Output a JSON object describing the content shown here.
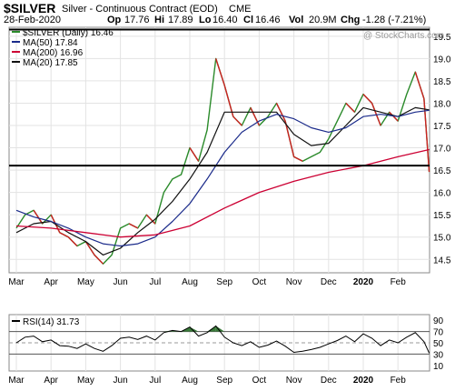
{
  "header": {
    "symbol": "$SILVER",
    "description": "Silver - Continuous Contract (EOD)",
    "exchange": "CME",
    "date": "28-Feb-2020",
    "open_label": "Op",
    "open": "17.76",
    "high_label": "Hi",
    "high": "17.89",
    "low_label": "Lo",
    "low": "16.40",
    "close_label": "Cl",
    "close": "16.46",
    "volume_label": "Vol",
    "volume": "20.9M",
    "change_label": "Chg",
    "change": "-1.28 (-7.21%)",
    "watermark": "@ StockCharts.com"
  },
  "colors": {
    "price_up": "#2a8a2a",
    "price_down": "#cc2222",
    "ma50": "#1a2a8a",
    "ma200": "#cc0033",
    "ma20": "#111111",
    "rsi_fill": "#3a7a3a",
    "support_line": "#000000"
  },
  "chart_data": [
    {
      "type": "line",
      "name": "price",
      "x_months": [
        "Mar",
        "Apr",
        "May",
        "Jun",
        "Jul",
        "Aug",
        "Sep",
        "Oct",
        "Nov",
        "Dec",
        "2020",
        "Feb"
      ],
      "ylim": [
        14.2,
        19.7
      ],
      "yticks": [
        "14.5",
        "15.0",
        "15.5",
        "16.0",
        "16.5",
        "17.0",
        "17.5",
        "18.0",
        "18.5",
        "19.0",
        "19.5"
      ],
      "horizontal_lines": [
        16.6,
        19.65
      ],
      "grid": true,
      "legend": [
        {
          "text": "$SILVER (Daily) 16.46"
        },
        {
          "text": "MA(50) 17.84"
        },
        {
          "text": "MA(200) 16.96"
        },
        {
          "text": "MA(20) 17.85"
        }
      ],
      "series": [
        {
          "id": "close",
          "x": [
            0,
            0.25,
            0.5,
            0.75,
            1,
            1.25,
            1.5,
            1.75,
            2,
            2.25,
            2.5,
            2.75,
            3,
            3.25,
            3.5,
            3.75,
            4,
            4.25,
            4.5,
            4.75,
            5,
            5.25,
            5.5,
            5.75,
            6,
            6.25,
            6.5,
            6.75,
            7,
            7.25,
            7.5,
            7.75,
            8,
            8.25,
            8.5,
            8.75,
            9,
            9.25,
            9.5,
            9.75,
            10,
            10.25,
            10.5,
            10.75,
            11,
            11.25,
            11.5,
            11.75,
            11.9
          ],
          "values": [
            15.2,
            15.5,
            15.6,
            15.3,
            15.5,
            15.1,
            15.0,
            14.8,
            14.9,
            14.6,
            14.4,
            14.6,
            15.2,
            15.3,
            15.2,
            15.5,
            15.3,
            16.0,
            16.3,
            16.4,
            17.0,
            16.7,
            17.4,
            19.0,
            18.4,
            17.7,
            17.5,
            17.9,
            17.5,
            17.7,
            18.0,
            17.6,
            16.8,
            16.7,
            16.8,
            16.9,
            17.2,
            17.6,
            18.0,
            17.8,
            18.2,
            18.0,
            17.5,
            17.8,
            17.6,
            18.2,
            18.7,
            18.1,
            16.46
          ]
        },
        {
          "id": "ma20",
          "x": [
            0,
            0.5,
            1,
            1.5,
            2,
            2.5,
            3,
            3.5,
            4,
            4.5,
            5,
            5.5,
            6,
            6.5,
            7,
            7.5,
            8,
            8.5,
            9,
            9.5,
            10,
            10.5,
            11,
            11.5,
            11.9
          ],
          "values": [
            15.1,
            15.3,
            15.35,
            15.1,
            14.9,
            14.6,
            14.75,
            15.1,
            15.4,
            15.8,
            16.3,
            16.9,
            17.8,
            17.8,
            17.8,
            17.8,
            17.3,
            17.05,
            17.1,
            17.5,
            17.9,
            17.8,
            17.7,
            17.9,
            17.85
          ]
        },
        {
          "id": "ma50",
          "x": [
            0,
            0.5,
            1,
            1.5,
            2,
            2.5,
            3,
            3.5,
            4,
            4.5,
            5,
            5.5,
            6,
            6.5,
            7,
            7.5,
            8,
            8.5,
            9,
            9.5,
            10,
            10.5,
            11,
            11.5,
            11.9
          ],
          "values": [
            15.6,
            15.45,
            15.35,
            15.2,
            15.0,
            14.85,
            14.8,
            14.85,
            15.0,
            15.35,
            15.75,
            16.3,
            16.9,
            17.35,
            17.6,
            17.75,
            17.65,
            17.45,
            17.35,
            17.45,
            17.7,
            17.75,
            17.7,
            17.8,
            17.84
          ]
        },
        {
          "id": "ma200",
          "x": [
            0,
            1,
            2,
            3,
            4,
            5,
            6,
            7,
            8,
            9,
            10,
            11,
            11.9
          ],
          "values": [
            15.25,
            15.2,
            15.1,
            15.0,
            15.05,
            15.25,
            15.65,
            16.0,
            16.25,
            16.45,
            16.6,
            16.8,
            16.96
          ]
        }
      ]
    },
    {
      "type": "line",
      "name": "rsi",
      "x_months": [
        "Mar",
        "Apr",
        "May",
        "Jun",
        "Jul",
        "Aug",
        "Sep",
        "Oct",
        "Nov",
        "Dec",
        "2020",
        "Feb"
      ],
      "ylim": [
        0,
        100
      ],
      "yticks": [
        "10",
        "30",
        "50",
        "70",
        "90"
      ],
      "horizontal_lines": [
        70,
        50,
        30
      ],
      "legend": [
        {
          "text": "RSI(14) 31.73"
        }
      ],
      "series": [
        {
          "id": "rsi14",
          "x": [
            0,
            0.25,
            0.5,
            0.75,
            1,
            1.25,
            1.5,
            1.75,
            2,
            2.25,
            2.5,
            2.75,
            3,
            3.25,
            3.5,
            3.75,
            4,
            4.25,
            4.5,
            4.75,
            5,
            5.25,
            5.5,
            5.75,
            6,
            6.25,
            6.5,
            6.75,
            7,
            7.25,
            7.5,
            7.75,
            8,
            8.25,
            8.5,
            8.75,
            9,
            9.25,
            9.5,
            9.75,
            10,
            10.25,
            10.5,
            10.75,
            11,
            11.25,
            11.5,
            11.75,
            11.9
          ],
          "values": [
            50,
            60,
            62,
            52,
            55,
            45,
            44,
            40,
            48,
            40,
            35,
            45,
            58,
            60,
            56,
            62,
            55,
            68,
            72,
            70,
            78,
            62,
            68,
            80,
            60,
            50,
            45,
            52,
            42,
            46,
            53,
            44,
            33,
            35,
            38,
            42,
            48,
            54,
            62,
            52,
            66,
            58,
            45,
            55,
            50,
            60,
            68,
            52,
            31.73
          ]
        }
      ]
    }
  ]
}
